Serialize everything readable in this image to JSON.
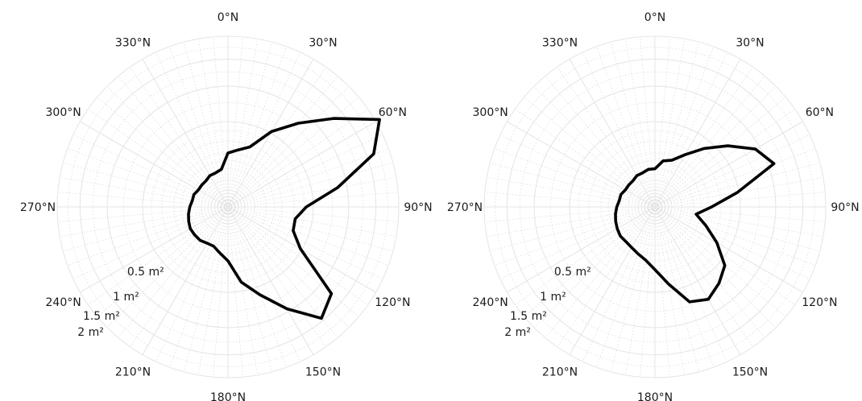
{
  "chart_data": [
    {
      "type": "polar-line",
      "angle_unit": "degrees clockwise from north",
      "angle_tick_labels": [
        "0°N",
        "30°N",
        "60°N",
        "90°N",
        "120°N",
        "150°N",
        "180°N",
        "210°N",
        "240°N",
        "270°N",
        "300°N",
        "330°N"
      ],
      "radius_tick_labels": [
        "0.5 m²",
        "1 m²",
        "1.5 m²",
        "2 m²"
      ],
      "radius_ticks": [
        0.5,
        1,
        1.5,
        2
      ],
      "rlim": [
        0,
        2
      ],
      "grid": true,
      "colors": {
        "line": "#000000",
        "grid_major": "#e6e6e6",
        "grid_minor": "#dcdcdc"
      },
      "series": [
        {
          "points": [
            [
              0,
              0.2
            ],
            [
              10,
              0.23
            ],
            [
              20,
              0.28
            ],
            [
              30,
              0.52
            ],
            [
              40,
              0.82
            ],
            [
              50,
              1.3
            ],
            [
              60,
              2.1
            ],
            [
              70,
              1.65
            ],
            [
              80,
              0.85
            ],
            [
              90,
              0.42
            ],
            [
              100,
              0.32
            ],
            [
              110,
              0.33
            ],
            [
              120,
              0.48
            ],
            [
              130,
              1.25
            ],
            [
              140,
              1.45
            ],
            [
              150,
              0.95
            ],
            [
              160,
              0.6
            ],
            [
              170,
              0.4
            ],
            [
              180,
              0.2
            ],
            [
              190,
              0.15
            ],
            [
              200,
              0.12
            ],
            [
              210,
              0.12
            ],
            [
              220,
              0.13
            ],
            [
              230,
              0.13
            ],
            [
              240,
              0.13
            ],
            [
              250,
              0.12
            ],
            [
              260,
              0.11
            ],
            [
              270,
              0.1
            ],
            [
              280,
              0.09
            ],
            [
              290,
              0.09
            ],
            [
              300,
              0.08
            ],
            [
              310,
              0.08
            ],
            [
              320,
              0.08
            ],
            [
              330,
              0.09
            ],
            [
              340,
              0.09
            ],
            [
              350,
              0.1
            ]
          ]
        }
      ]
    },
    {
      "type": "polar-line",
      "angle_unit": "degrees clockwise from north",
      "angle_tick_labels": [
        "0°N",
        "30°N",
        "60°N",
        "90°N",
        "120°N",
        "150°N",
        "180°N",
        "210°N",
        "240°N",
        "270°N",
        "300°N",
        "330°N"
      ],
      "radius_tick_labels": [
        "0.5 m²",
        "1 m²",
        "1.5 m²",
        "2 m²"
      ],
      "radius_ticks": [
        0.5,
        1,
        1.5,
        2
      ],
      "rlim": [
        0,
        2
      ],
      "grid": true,
      "colors": {
        "line": "#000000",
        "grid_major": "#e6e6e6",
        "grid_minor": "#dcdcdc"
      },
      "series": [
        {
          "points": [
            [
              0,
              0.1
            ],
            [
              10,
              0.15
            ],
            [
              20,
              0.17
            ],
            [
              30,
              0.25
            ],
            [
              40,
              0.4
            ],
            [
              50,
              0.62
            ],
            [
              60,
              0.92
            ],
            [
              70,
              1.1
            ],
            [
              80,
              0.48
            ],
            [
              90,
              0.22
            ],
            [
              100,
              0.12
            ],
            [
              110,
              0.2
            ],
            [
              120,
              0.35
            ],
            [
              130,
              0.57
            ],
            [
              140,
              0.68
            ],
            [
              150,
              0.78
            ],
            [
              160,
              0.7
            ],
            [
              170,
              0.42
            ],
            [
              180,
              0.27
            ],
            [
              190,
              0.2
            ],
            [
              200,
              0.17
            ],
            [
              210,
              0.15
            ],
            [
              220,
              0.14
            ],
            [
              230,
              0.14
            ],
            [
              240,
              0.13
            ],
            [
              250,
              0.12
            ],
            [
              260,
              0.11
            ],
            [
              270,
              0.1
            ],
            [
              280,
              0.09
            ],
            [
              290,
              0.09
            ],
            [
              300,
              0.08
            ],
            [
              310,
              0.08
            ],
            [
              320,
              0.08
            ],
            [
              330,
              0.09
            ],
            [
              340,
              0.09
            ],
            [
              350,
              0.1
            ]
          ]
        }
      ]
    }
  ]
}
